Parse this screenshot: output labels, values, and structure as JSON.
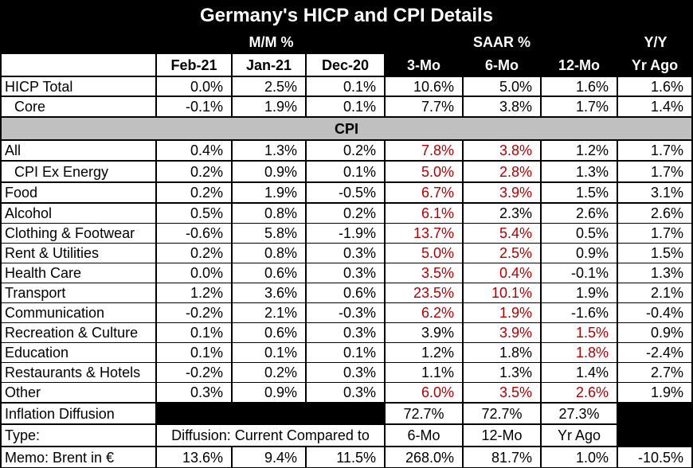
{
  "title": "Germany's HICP and CPI Details",
  "groups": {
    "mm": "M/M %",
    "saar": "SAAR %",
    "yy": "Y/Y"
  },
  "columns": [
    "Feb-21",
    "Jan-21",
    "Dec-20",
    "3-Mo",
    "6-Mo",
    "12-Mo",
    "Yr Ago"
  ],
  "cpi_section": "CPI",
  "rows": [
    {
      "label": "HICP Total",
      "values": [
        "0.0%",
        "2.5%",
        "0.1%",
        "10.6%",
        "5.0%",
        "1.6%",
        "1.6%"
      ],
      "red": []
    },
    {
      "label": "Core",
      "indent": true,
      "values": [
        "-0.1%",
        "1.9%",
        "0.1%",
        "7.7%",
        "3.8%",
        "1.7%",
        "1.4%"
      ],
      "red": []
    },
    {
      "label": "All",
      "values": [
        "0.4%",
        "1.3%",
        "0.2%",
        "7.8%",
        "3.8%",
        "1.2%",
        "1.7%"
      ],
      "red": [
        3,
        4
      ]
    },
    {
      "label": "CPI Ex Energy",
      "indent": true,
      "values": [
        "0.2%",
        "0.9%",
        "0.1%",
        "5.0%",
        "2.8%",
        "1.3%",
        "1.7%"
      ],
      "red": [
        3,
        4
      ]
    },
    {
      "label": "Food",
      "values": [
        "0.2%",
        "1.9%",
        "-0.5%",
        "6.7%",
        "3.9%",
        "1.5%",
        "3.1%"
      ],
      "red": [
        3,
        4
      ]
    },
    {
      "label": "Alcohol",
      "values": [
        "0.5%",
        "0.8%",
        "0.2%",
        "6.1%",
        "2.3%",
        "2.6%",
        "2.6%"
      ],
      "red": [
        3
      ]
    },
    {
      "label": "Clothing & Footwear",
      "values": [
        "-0.6%",
        "5.8%",
        "-1.9%",
        "13.7%",
        "5.4%",
        "0.5%",
        "1.7%"
      ],
      "red": [
        3,
        4
      ]
    },
    {
      "label": "Rent & Utilities",
      "values": [
        "0.2%",
        "0.8%",
        "0.3%",
        "5.0%",
        "2.5%",
        "0.9%",
        "1.5%"
      ],
      "red": [
        3,
        4
      ]
    },
    {
      "label": "Health Care",
      "values": [
        "0.0%",
        "0.6%",
        "0.3%",
        "3.5%",
        "0.4%",
        "-0.1%",
        "1.3%"
      ],
      "red": [
        3,
        4
      ]
    },
    {
      "label": "Transport",
      "values": [
        "1.2%",
        "3.6%",
        "0.6%",
        "23.5%",
        "10.1%",
        "1.9%",
        "2.1%"
      ],
      "red": [
        3,
        4
      ]
    },
    {
      "label": "Communication",
      "values": [
        "-0.2%",
        "2.1%",
        "-0.3%",
        "6.2%",
        "1.9%",
        "-1.6%",
        "-0.4%"
      ],
      "red": [
        3,
        4
      ]
    },
    {
      "label": "Recreation & Culture",
      "values": [
        "0.1%",
        "0.6%",
        "0.3%",
        "3.9%",
        "3.9%",
        "1.5%",
        "0.9%"
      ],
      "red": [
        4,
        5
      ]
    },
    {
      "label": "Education",
      "values": [
        "0.1%",
        "0.1%",
        "0.1%",
        "1.2%",
        "1.8%",
        "1.8%",
        "-2.4%"
      ],
      "red": [
        5
      ]
    },
    {
      "label": "Restaurants & Hotels",
      "values": [
        "-0.2%",
        "0.2%",
        "0.3%",
        "1.1%",
        "1.3%",
        "1.4%",
        "2.7%"
      ],
      "red": []
    },
    {
      "label": "Other",
      "values": [
        "0.3%",
        "0.9%",
        "0.3%",
        "6.0%",
        "3.5%",
        "2.6%",
        "1.9%"
      ],
      "red": [
        3,
        4,
        5
      ]
    }
  ],
  "diffusion": {
    "label": "Inflation Diffusion",
    "values": [
      "72.7%",
      "72.7%",
      "27.3%"
    ]
  },
  "type_row": {
    "label": "Type:",
    "note": "Diffusion: Current Compared to",
    "values": [
      "6-Mo",
      "12-Mo",
      "Yr Ago"
    ]
  },
  "memo": {
    "label": "Memo: Brent in €",
    "values": [
      "13.6%",
      "9.4%",
      "11.5%",
      "268.0%",
      "81.7%",
      "1.0%",
      "-10.5%"
    ]
  }
}
